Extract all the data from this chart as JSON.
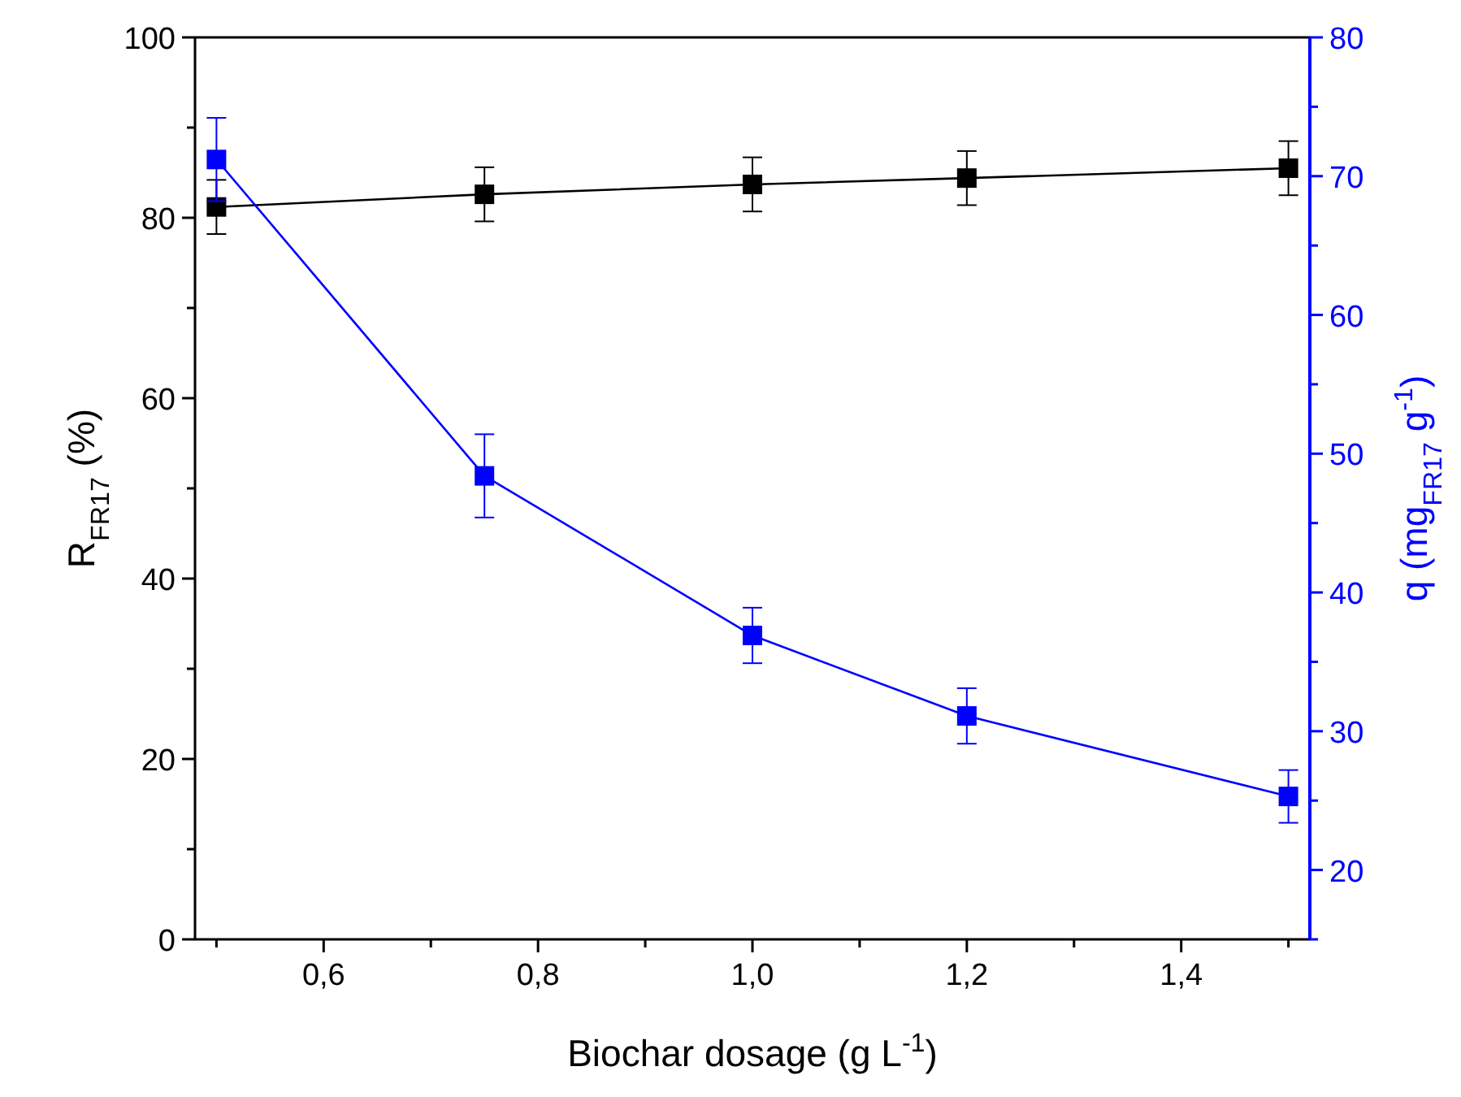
{
  "chart_data": {
    "type": "line",
    "xlabel": "Biochar dosage (g L$^{-1}$)",
    "ylabel": "R$_{FR17}$ (%)",
    "y2label": "q (mg$_{FR17}$ g$^{-1}$)",
    "x": [
      0.5,
      0.75,
      1.0,
      1.2,
      1.5
    ],
    "series": [
      {
        "color": "#000000",
        "values": [
          81.2,
          82.6,
          83.7,
          84.4,
          85.5
        ],
        "errors": [
          3,
          3,
          3,
          3,
          3
        ]
      },
      {
        "color": "#0000ff",
        "axis": "y2",
        "values": [
          71.2,
          48.4,
          36.9,
          31.1,
          25.3
        ],
        "errors": [
          3,
          3,
          2,
          2,
          1.9
        ]
      }
    ],
    "xlim": [
      0.48,
      1.52
    ],
    "xticks": [
      {
        "value": 0.5,
        "label": null
      },
      {
        "value": 0.6,
        "label": "0,6"
      },
      {
        "value": 0.7,
        "label": null
      },
      {
        "value": 0.8,
        "label": "0,8"
      },
      {
        "value": 0.9,
        "label": null
      },
      {
        "value": 1.0,
        "label": "1,0"
      },
      {
        "value": 1.1,
        "label": null
      },
      {
        "value": 1.2,
        "label": "1,2"
      },
      {
        "value": 1.3,
        "label": null
      },
      {
        "value": 1.4,
        "label": "1,4"
      },
      {
        "value": 1.5,
        "label": null
      }
    ],
    "ylim": [
      0,
      100
    ],
    "yticks": [
      0,
      {
        "value": 10,
        "label": null
      },
      20,
      {
        "value": 30,
        "label": null
      },
      40,
      {
        "value": 50,
        "label": null
      },
      60,
      {
        "value": 70,
        "label": null
      },
      80,
      {
        "value": 90,
        "label": null
      },
      100
    ],
    "y2lim": [
      15,
      80
    ],
    "y2ticks": [
      {
        "value": 15,
        "label": null
      },
      20,
      {
        "value": 25,
        "label": null
      },
      30,
      {
        "value": 35,
        "label": null
      },
      40,
      {
        "value": 45,
        "label": null
      },
      50,
      {
        "value": 55,
        "label": null
      },
      60,
      {
        "value": 65,
        "label": null
      },
      70,
      {
        "value": 75,
        "label": null
      },
      80
    ],
    "marker": "square",
    "line_style": "solid",
    "grid": false
  }
}
